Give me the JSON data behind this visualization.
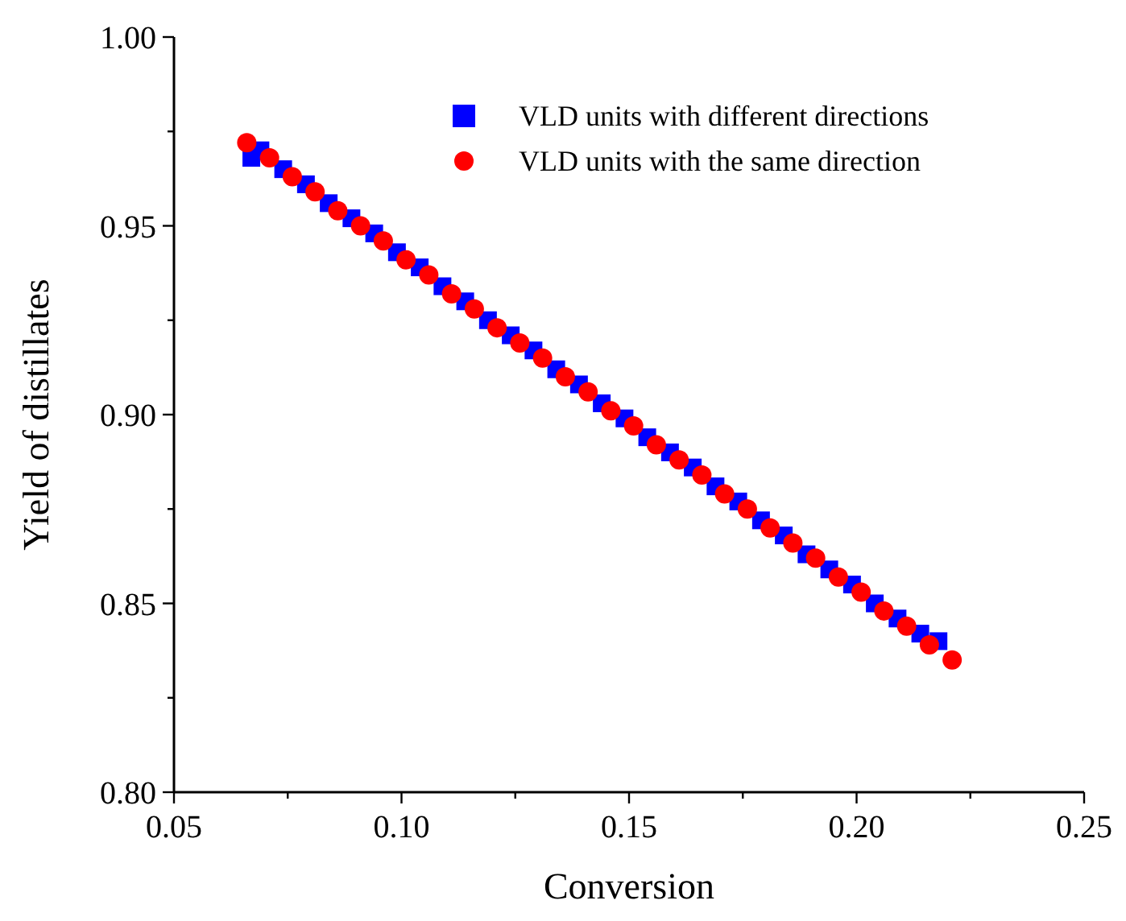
{
  "chart_data": {
    "type": "scatter",
    "xlabel": "Conversion",
    "ylabel": "Yield of distillates",
    "xlim": [
      0.05,
      0.25
    ],
    "ylim": [
      0.8,
      1.0
    ],
    "xticks": [
      0.05,
      {
        "value": 0.075,
        "label": null
      },
      {
        "value": 0.1,
        "label": "0.10"
      },
      {
        "value": 0.125,
        "label": null
      },
      0.15,
      {
        "value": 0.175,
        "label": null
      },
      {
        "value": 0.2,
        "label": "0.20"
      },
      {
        "value": 0.225,
        "label": null
      },
      0.25
    ],
    "yticks": [
      {
        "value": 0.8,
        "label": "0.80"
      },
      {
        "value": 0.825,
        "label": null
      },
      0.85,
      {
        "value": 0.875,
        "label": null
      },
      {
        "value": 0.9,
        "label": "0.90"
      },
      {
        "value": 0.925,
        "label": null
      },
      0.95,
      {
        "value": 0.975,
        "label": null
      },
      {
        "value": 1.0,
        "label": "1.00"
      }
    ],
    "grid": false,
    "legend": "top right",
    "series": [
      {
        "name": "VLD units with different directions",
        "color": "#0000ff",
        "marker": "square",
        "x": [
          0.067,
          0.069,
          0.074,
          0.079,
          0.084,
          0.089,
          0.094,
          0.099,
          0.104,
          0.109,
          0.114,
          0.119,
          0.124,
          0.129,
          0.134,
          0.139,
          0.144,
          0.149,
          0.154,
          0.159,
          0.164,
          0.169,
          0.174,
          0.179,
          0.184,
          0.189,
          0.194,
          0.199,
          0.204,
          0.209,
          0.214,
          0.218
        ],
        "values": [
          0.968,
          0.97,
          0.965,
          0.961,
          0.956,
          0.952,
          0.948,
          0.943,
          0.939,
          0.934,
          0.93,
          0.925,
          0.921,
          0.917,
          0.912,
          0.908,
          0.903,
          0.899,
          0.894,
          0.89,
          0.886,
          0.881,
          0.877,
          0.872,
          0.868,
          0.863,
          0.859,
          0.855,
          0.85,
          0.846,
          0.842,
          0.84
        ]
      },
      {
        "name": "VLD units with the same direction",
        "color": "#ff0000",
        "marker": "circle",
        "x": [
          0.066,
          0.071,
          0.076,
          0.081,
          0.086,
          0.091,
          0.096,
          0.101,
          0.106,
          0.111,
          0.116,
          0.121,
          0.126,
          0.131,
          0.136,
          0.141,
          0.146,
          0.151,
          0.156,
          0.161,
          0.166,
          0.171,
          0.176,
          0.181,
          0.186,
          0.191,
          0.196,
          0.201,
          0.206,
          0.211,
          0.216,
          0.221
        ],
        "values": [
          0.972,
          0.968,
          0.963,
          0.959,
          0.954,
          0.95,
          0.946,
          0.941,
          0.937,
          0.932,
          0.928,
          0.923,
          0.919,
          0.915,
          0.91,
          0.906,
          0.901,
          0.897,
          0.892,
          0.888,
          0.884,
          0.879,
          0.875,
          0.87,
          0.866,
          0.862,
          0.857,
          0.853,
          0.848,
          0.844,
          0.839,
          0.835
        ]
      }
    ]
  }
}
